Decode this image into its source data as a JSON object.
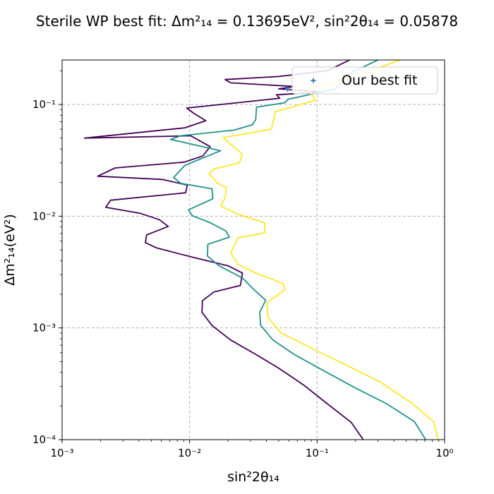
{
  "chart_data": {
    "type": "line",
    "title": "Sterile WP best fit: Δm²₁₄ = 0.13695eV², sin²2θ₁₄ = 0.05878",
    "xlabel": "sin²2θ₁₄",
    "ylabel": "Δm²₁₄(eV²)",
    "xscale": "log",
    "yscale": "log",
    "xlim": [
      0.001,
      1
    ],
    "ylim": [
      0.0001,
      0.25
    ],
    "grid": true,
    "legend_position": "top-right",
    "legend_entries": [
      "Our best fit"
    ],
    "x_tick_labels": [
      "10⁻³",
      "10⁻²",
      "10⁻¹",
      "10⁰"
    ],
    "y_tick_labels": [
      "10⁻⁴",
      "10⁻³",
      "10⁻²",
      "10⁻¹"
    ],
    "x_ticks": [
      0.001,
      0.01,
      0.1,
      1
    ],
    "y_ticks": [
      0.0001,
      0.001,
      0.01,
      0.1
    ],
    "colors": {
      "c1": "#440154",
      "c2": "#21918c",
      "c3": "#fde725",
      "marker": "#1f77b4"
    },
    "series": [
      {
        "color": "#440154",
        "points": [
          [
            0.23,
            0.0001
          ],
          [
            0.185,
            0.000143
          ],
          [
            0.12,
            0.00021
          ],
          [
            0.078,
            0.00031
          ],
          [
            0.051,
            0.00043
          ],
          [
            0.033,
            0.00058
          ],
          [
            0.021,
            0.00078
          ],
          [
            0.015,
            0.00105
          ],
          [
            0.0125,
            0.00138
          ],
          [
            0.0126,
            0.00175
          ],
          [
            0.0155,
            0.0021
          ],
          [
            0.025,
            0.0024
          ],
          [
            0.026,
            0.0031
          ],
          [
            0.02,
            0.0036
          ],
          [
            0.0105,
            0.0043
          ],
          [
            0.0055,
            0.0052
          ],
          [
            0.0045,
            0.0058
          ],
          [
            0.0046,
            0.0068
          ],
          [
            0.0068,
            0.0081
          ],
          [
            0.0058,
            0.0093
          ],
          [
            0.0041,
            0.0106
          ],
          [
            0.0022,
            0.012
          ],
          [
            0.0024,
            0.0139
          ],
          [
            0.0093,
            0.0162
          ],
          [
            0.0096,
            0.019
          ],
          [
            0.0061,
            0.0213
          ],
          [
            0.0019,
            0.0228
          ],
          [
            0.0026,
            0.027
          ],
          [
            0.0091,
            0.0305
          ],
          [
            0.0127,
            0.0346
          ],
          [
            0.0145,
            0.0419
          ],
          [
            0.0102,
            0.0524
          ],
          [
            0.0015,
            0.05
          ],
          [
            0.0092,
            0.0618
          ],
          [
            0.0134,
            0.0716
          ],
          [
            0.0108,
            0.0833
          ],
          [
            0.0095,
            0.0929
          ],
          [
            0.051,
            0.1137
          ],
          [
            0.048,
            0.122
          ],
          [
            0.11,
            0.129
          ],
          [
            0.05,
            0.138
          ],
          [
            0.067,
            0.145
          ],
          [
            0.021,
            0.156
          ],
          [
            0.019,
            0.167
          ],
          [
            0.05,
            0.178
          ],
          [
            0.12,
            0.2
          ],
          [
            0.18,
            0.25
          ]
        ]
      },
      {
        "color": "#21918c",
        "points": [
          [
            0.71,
            0.0001
          ],
          [
            0.58,
            0.000145
          ],
          [
            0.35,
            0.00021
          ],
          [
            0.2,
            0.00029
          ],
          [
            0.11,
            0.00042
          ],
          [
            0.066,
            0.00058
          ],
          [
            0.045,
            0.00078
          ],
          [
            0.036,
            0.00106
          ],
          [
            0.0355,
            0.00138
          ],
          [
            0.0395,
            0.00177
          ],
          [
            0.032,
            0.0022
          ],
          [
            0.026,
            0.0028
          ],
          [
            0.017,
            0.0036
          ],
          [
            0.0138,
            0.0044
          ],
          [
            0.0139,
            0.0056
          ],
          [
            0.0205,
            0.0065
          ],
          [
            0.0192,
            0.0074
          ],
          [
            0.0143,
            0.0088
          ],
          [
            0.0105,
            0.0101
          ],
          [
            0.0098,
            0.0114
          ],
          [
            0.0152,
            0.0143
          ],
          [
            0.015,
            0.0176
          ],
          [
            0.0085,
            0.0197
          ],
          [
            0.0075,
            0.0222
          ],
          [
            0.0092,
            0.0285
          ],
          [
            0.0175,
            0.0385
          ],
          [
            0.0071,
            0.0486
          ],
          [
            0.0085,
            0.0524
          ],
          [
            0.0223,
            0.0589
          ],
          [
            0.031,
            0.0657
          ],
          [
            0.033,
            0.0729
          ],
          [
            0.0335,
            0.0945
          ],
          [
            0.056,
            0.1037
          ],
          [
            0.059,
            0.111
          ],
          [
            0.14,
            0.138
          ],
          [
            0.18,
            0.19
          ],
          [
            0.3,
            0.25
          ]
        ]
      },
      {
        "color": "#fde725",
        "points": [
          [
            0.89,
            0.0001
          ],
          [
            0.82,
            0.000145
          ],
          [
            0.56,
            0.00021
          ],
          [
            0.31,
            0.00033
          ],
          [
            0.16,
            0.00048
          ],
          [
            0.1,
            0.00062
          ],
          [
            0.069,
            0.00077
          ],
          [
            0.052,
            0.0009
          ],
          [
            0.041,
            0.00125
          ],
          [
            0.0405,
            0.00168
          ],
          [
            0.056,
            0.0022
          ],
          [
            0.054,
            0.0025
          ],
          [
            0.033,
            0.0031
          ],
          [
            0.024,
            0.0037
          ],
          [
            0.021,
            0.0047
          ],
          [
            0.024,
            0.0064
          ],
          [
            0.0388,
            0.0071
          ],
          [
            0.0388,
            0.0087
          ],
          [
            0.0235,
            0.0105
          ],
          [
            0.0176,
            0.0123
          ],
          [
            0.019,
            0.0147
          ],
          [
            0.0194,
            0.0181
          ],
          [
            0.0165,
            0.0198
          ],
          [
            0.0142,
            0.0239
          ],
          [
            0.0157,
            0.0265
          ],
          [
            0.0247,
            0.0301
          ],
          [
            0.0258,
            0.0362
          ],
          [
            0.0183,
            0.0505
          ],
          [
            0.0438,
            0.0601
          ],
          [
            0.047,
            0.0861
          ],
          [
            0.097,
            0.109
          ],
          [
            0.086,
            0.135
          ],
          [
            0.23,
            0.19
          ],
          [
            0.45,
            0.25
          ]
        ]
      }
    ],
    "markers": [
      {
        "x": 0.05878,
        "y": 0.13695,
        "symbol": "+",
        "color": "#1f77b4"
      },
      {
        "x": 0.093,
        "y": 0.16,
        "symbol": "+",
        "color": "#1f77b4"
      }
    ]
  }
}
